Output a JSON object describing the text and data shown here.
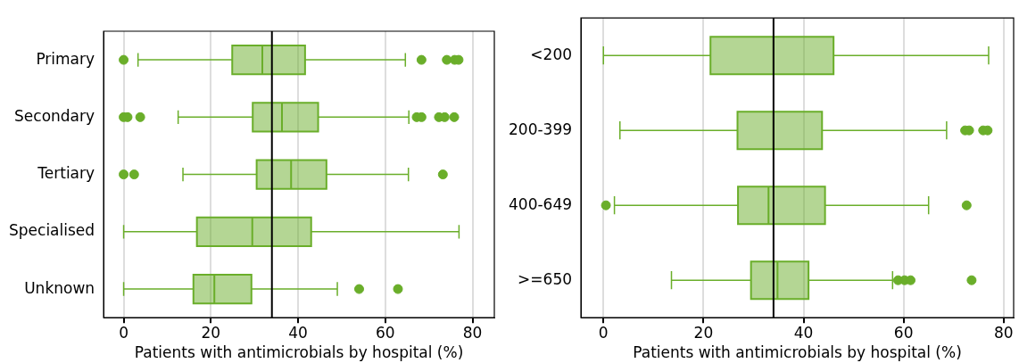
{
  "chart_data": [
    {
      "type": "box",
      "categories": [
        "Primary",
        "Secondary",
        "Tertiary",
        "Specialised",
        "Unknown"
      ],
      "xlabel": "Patients with antimicrobials by hospital (%)",
      "orientation": "horizontal",
      "xlim": [
        -4.6,
        85
      ],
      "xticks": [
        0,
        20,
        40,
        60,
        80
      ],
      "grid": "x",
      "ref_lines": [
        {
          "axis": "x",
          "value": 34,
          "color": "#000000"
        }
      ],
      "series": [
        {
          "color": "#6aae2a",
          "boxes": [
            {
              "low": 3.3,
              "q1": 24.9,
              "median": 31.8,
              "q3": 41.6,
              "high": 64.6,
              "outliers": [
                0,
                68.3,
                74.1,
                75.9,
                76.8
              ]
            },
            {
              "low": 12.5,
              "q1": 29.6,
              "median": 36.3,
              "q3": 44.6,
              "high": 65.4,
              "outliers": [
                0,
                0.9,
                3.8,
                67.2,
                68.3,
                72.3,
                73.6,
                75.8
              ]
            },
            {
              "low": 13.6,
              "q1": 30.5,
              "median": 38.4,
              "q3": 46.5,
              "high": 65.3,
              "outliers": [
                0,
                2.4,
                73.2
              ]
            },
            {
              "low": 0,
              "q1": 16.8,
              "median": 29.5,
              "q3": 43.0,
              "high": 76.9
            },
            {
              "low": 0,
              "q1": 16.0,
              "median": 20.8,
              "q3": 29.3,
              "high": 49.0,
              "outliers": [
                54.0,
                62.9
              ]
            }
          ]
        }
      ]
    },
    {
      "type": "box",
      "categories": [
        "<200",
        "200-399",
        "400-649",
        ">=650"
      ],
      "xlabel": "Patients with antimicrobials by hospital (%)",
      "orientation": "horizontal",
      "xlim": [
        -4.5,
        82
      ],
      "xticks": [
        0,
        20,
        40,
        60,
        80
      ],
      "grid": "x",
      "ref_lines": [
        {
          "axis": "x",
          "value": 34,
          "color": "#000000"
        }
      ],
      "series": [
        {
          "color": "#6aae2a",
          "boxes": [
            {
              "low": 0,
              "q1": 21.4,
              "median": 34.0,
              "q3": 46.0,
              "high": 77.0
            },
            {
              "low": 3.3,
              "q1": 26.8,
              "median": 34.0,
              "q3": 43.7,
              "high": 68.6,
              "outliers": [
                72.3,
                73.1,
                75.9,
                76.8
              ]
            },
            {
              "low": 2.2,
              "q1": 26.9,
              "median": 33.0,
              "q3": 44.3,
              "high": 65.0,
              "outliers": [
                0.5,
                72.6
              ]
            },
            {
              "low": 13.6,
              "q1": 29.5,
              "median": 34.8,
              "q3": 41.0,
              "high": 57.8,
              "outliers": [
                58.9,
                60.2,
                61.4,
                73.6
              ]
            }
          ]
        }
      ]
    }
  ]
}
